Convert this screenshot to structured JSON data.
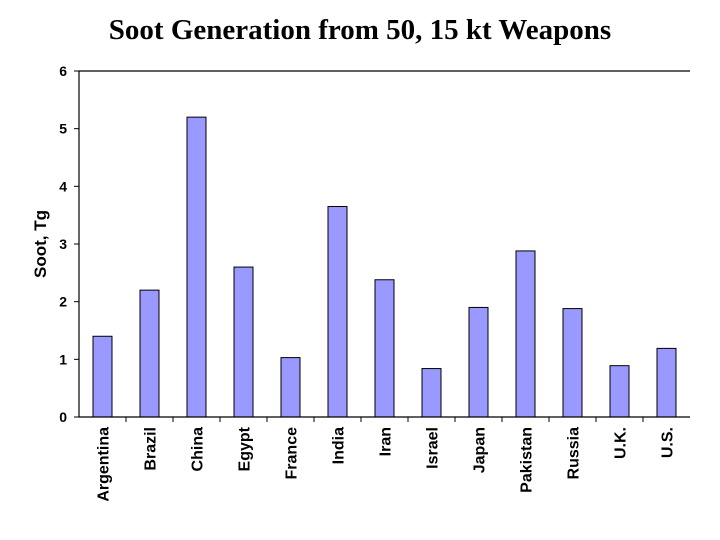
{
  "chart_data": {
    "type": "bar",
    "title": "Soot Generation from 50, 15 kt Weapons",
    "xlabel": "",
    "ylabel": "Soot, Tg",
    "ylim": [
      0,
      6
    ],
    "yticks": [
      0,
      1,
      2,
      3,
      4,
      5,
      6
    ],
    "grid": false,
    "bar_color": "#9999ff",
    "categories": [
      "Argentina",
      "Brazil",
      "China",
      "Egypt",
      "France",
      "India",
      "Iran",
      "Israel",
      "Japan",
      "Pakistan",
      "Russia",
      "U.K.",
      "U.S."
    ],
    "values": [
      1.4,
      2.2,
      5.2,
      2.6,
      1.03,
      3.65,
      2.38,
      0.84,
      1.9,
      2.88,
      1.88,
      0.89,
      1.19
    ]
  }
}
